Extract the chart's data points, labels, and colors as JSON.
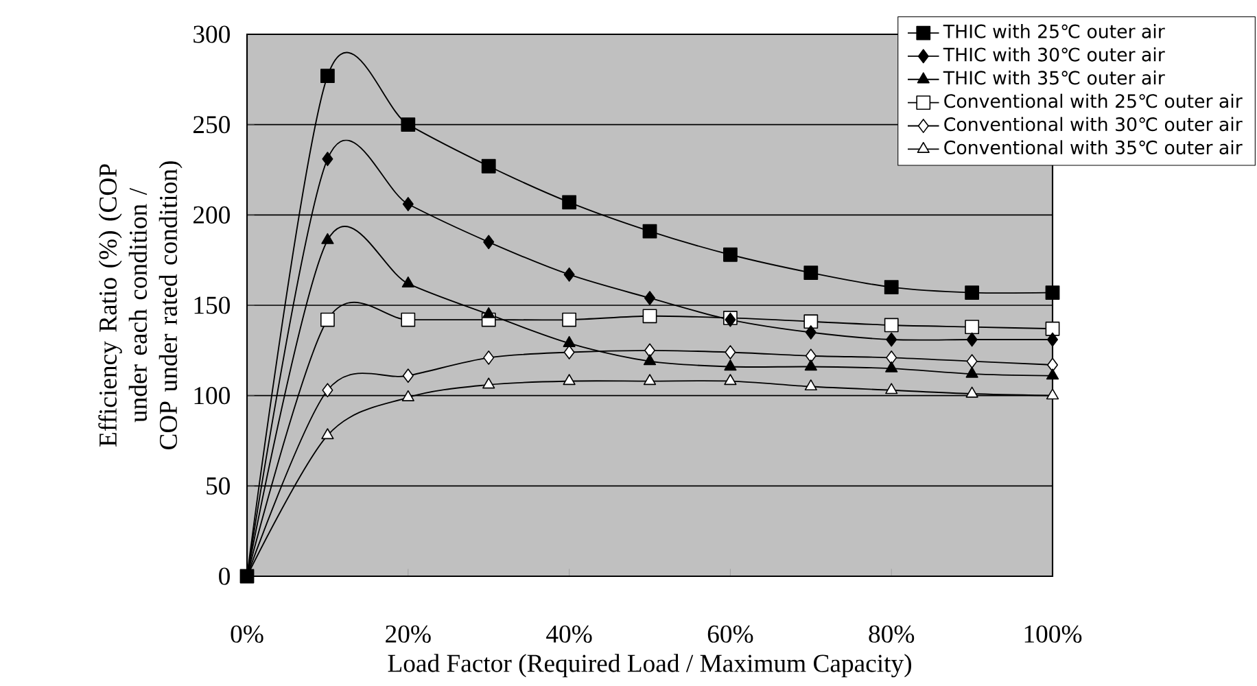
{
  "chart_data": {
    "type": "line",
    "xlabel": "Load Factor (Required Load / Maximum Capacity)",
    "ylabel": "Efficiency Ratio (%) (COP under each condition / COP under rated condition)",
    "x": [
      0,
      10,
      20,
      30,
      40,
      50,
      60,
      70,
      80,
      90,
      100
    ],
    "series": [
      {
        "name": "THIC with 25℃ outer air",
        "color": "#000000",
        "marker": "square",
        "values": [
          0,
          277,
          250,
          227,
          207,
          191,
          178,
          168,
          160,
          157,
          157
        ]
      },
      {
        "name": "THIC with 30℃ outer air",
        "color": "#000000",
        "marker": "diamond",
        "values": [
          0,
          231,
          206,
          185,
          167,
          154,
          142,
          135,
          131,
          131,
          131
        ]
      },
      {
        "name": "THIC with 35℃ outer air",
        "color": "#000000",
        "marker": "triangle",
        "values": [
          0,
          186,
          162,
          145,
          129,
          119,
          116,
          116,
          115,
          112,
          111
        ]
      },
      {
        "name": "Conventional with 25℃ outer air",
        "color": "#ffffff",
        "marker": "square",
        "values": [
          0,
          142,
          142,
          142,
          142,
          144,
          143,
          141,
          139,
          138,
          137
        ]
      },
      {
        "name": "Conventional with 30℃ outer air",
        "color": "#ffffff",
        "marker": "diamond",
        "values": [
          0,
          103,
          111,
          121,
          124,
          125,
          124,
          122,
          121,
          119,
          117
        ]
      },
      {
        "name": "Conventional with 35℃ outer air",
        "color": "#ffffff",
        "marker": "triangle",
        "values": [
          0,
          78,
          99,
          106,
          108,
          108,
          108,
          105,
          103,
          101,
          100
        ]
      }
    ],
    "xlim": [
      0,
      100
    ],
    "xticks": [
      {
        "value": 0,
        "label": "0%"
      },
      {
        "value": 20,
        "label": "20%"
      },
      {
        "value": 40,
        "label": "40%"
      },
      {
        "value": 60,
        "label": "60%"
      },
      {
        "value": 80,
        "label": "80%"
      },
      {
        "value": 100,
        "label": "100%"
      }
    ],
    "ylim": [
      0,
      300
    ],
    "yticks": [
      0,
      50,
      100,
      150,
      200,
      250,
      300
    ],
    "grid": "y",
    "legend": "top right",
    "line_style": "solid"
  }
}
